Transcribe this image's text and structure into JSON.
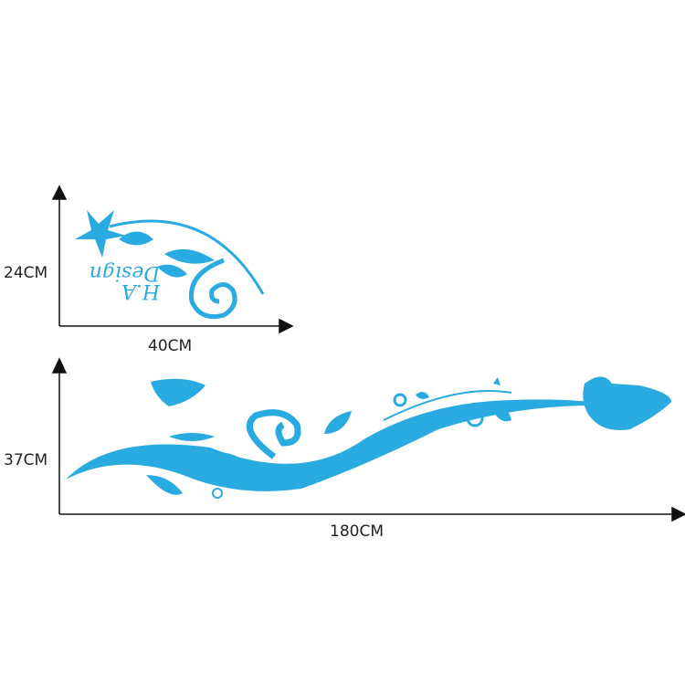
{
  "decal_color": "#29abe2",
  "small_decal": {
    "height_label": "24CM",
    "width_label": "40CM",
    "logo_text": "H.A Design"
  },
  "large_decal": {
    "height_label": "37CM",
    "width_label": "180CM"
  }
}
